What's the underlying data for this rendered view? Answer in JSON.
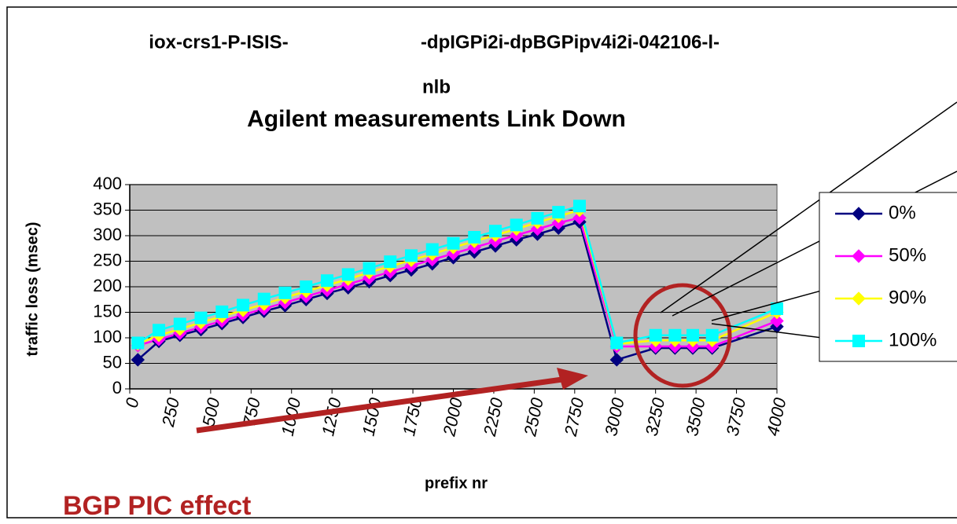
{
  "chart_data": {
    "type": "line",
    "title_lines": [
      "iox-crs1-P-ISIS-",
      "-dpIGPi2i-dpBGPipv4i2i-042106-l-",
      "nlb"
    ],
    "subtitle": "Agilent measurements Link Down",
    "y_label": "traffic loss (msec)",
    "x_label": "prefix nr",
    "annotation": "BGP PIC effect",
    "x": [
      50,
      180,
      310,
      440,
      570,
      700,
      830,
      960,
      1090,
      1220,
      1350,
      1480,
      1610,
      1740,
      1870,
      2000,
      2130,
      2260,
      2390,
      2520,
      2650,
      2780,
      3010,
      3250,
      3370,
      3480,
      3600,
      4000
    ],
    "series": [
      {
        "name": "0%",
        "color": "#000080",
        "marker": "diamond",
        "values": [
          57,
          93,
          105,
          116,
          128,
          140,
          152,
          163,
          175,
          187,
          198,
          210,
          222,
          233,
          245,
          257,
          268,
          280,
          292,
          303,
          315,
          327,
          57,
          80,
          80,
          80,
          80,
          122
        ]
      },
      {
        "name": "50%",
        "color": "#ff00ff",
        "marker": "diamond",
        "values": [
          85,
          97,
          109,
          121,
          133,
          145,
          157,
          169,
          181,
          193,
          205,
          217,
          229,
          241,
          253,
          265,
          277,
          289,
          301,
          313,
          325,
          335,
          83,
          83,
          83,
          83,
          83,
          133
        ]
      },
      {
        "name": "90%",
        "color": "#ffff00",
        "marker": "diamond",
        "values": [
          88,
          105,
          117,
          130,
          142,
          154,
          166,
          179,
          191,
          203,
          215,
          228,
          240,
          252,
          264,
          277,
          289,
          301,
          313,
          326,
          338,
          350,
          88,
          95,
          95,
          95,
          95,
          150
        ]
      },
      {
        "name": "100%",
        "color": "#00ffff",
        "marker": "square",
        "values": [
          90,
          115,
          127,
          139,
          151,
          164,
          176,
          188,
          200,
          212,
          224,
          236,
          249,
          261,
          273,
          285,
          297,
          309,
          321,
          334,
          346,
          358,
          90,
          105,
          105,
          105,
          105,
          157
        ]
      }
    ],
    "xlim": [
      0,
      4000
    ],
    "xticks": [
      0,
      250,
      500,
      750,
      1000,
      1250,
      1500,
      1750,
      2000,
      2250,
      2500,
      2750,
      3000,
      3250,
      3500,
      3750,
      4000
    ],
    "ylim": [
      0,
      400
    ],
    "yticks": [
      0,
      50,
      100,
      150,
      200,
      250,
      300,
      350,
      400
    ],
    "grid": true,
    "plot_background": "#c0c0c0",
    "legend": "right"
  }
}
